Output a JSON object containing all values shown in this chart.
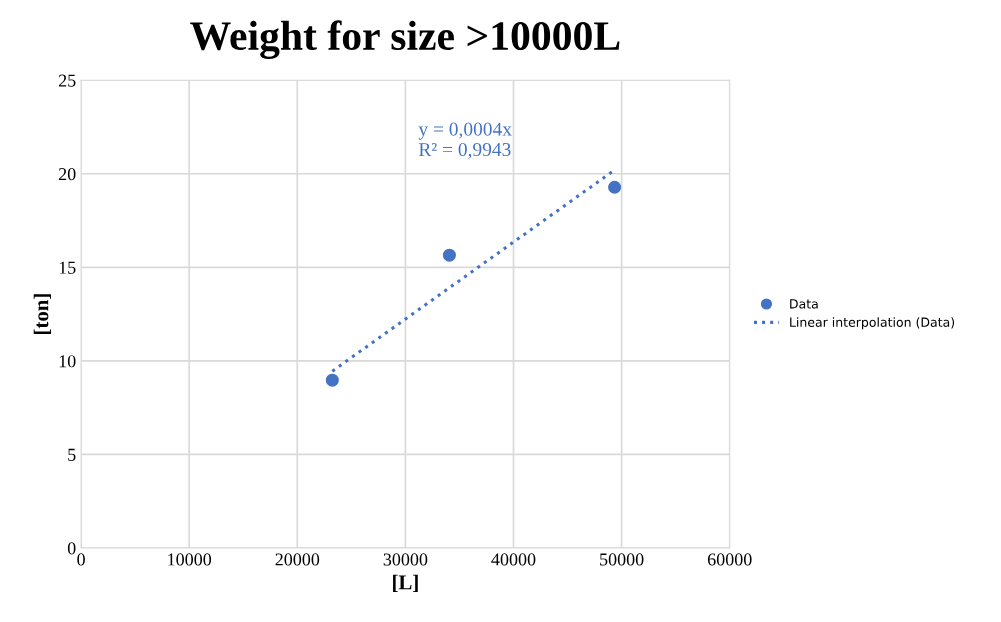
{
  "chart_data": {
    "type": "scatter",
    "title": "Weight for size >10000L",
    "xlabel": "[L]",
    "ylabel": "[ton]",
    "series": [
      {
        "name": "Data",
        "color": "#4472c4",
        "marker": "circle",
        "x": [
          23240,
          34070,
          49350
        ],
        "values": [
          8.97,
          15.65,
          19.28
        ]
      },
      {
        "name": "Linear interpolation (Data)",
        "type": "line",
        "color": "#4472c4",
        "line_style": "dotted",
        "marker": "none",
        "x": [
          23240,
          49350
        ],
        "values": [
          9.45,
          20.2
        ]
      }
    ],
    "annotations": [
      "y = 0,0004x\nR² = 0,9943"
    ],
    "xlim": [
      0,
      60000
    ],
    "xticks": [
      0,
      10000,
      20000,
      30000,
      40000,
      50000,
      60000
    ],
    "ylim": [
      0,
      25
    ],
    "yticks": [
      0,
      5,
      10,
      15,
      20,
      25
    ],
    "grid": true,
    "legend": "right"
  }
}
